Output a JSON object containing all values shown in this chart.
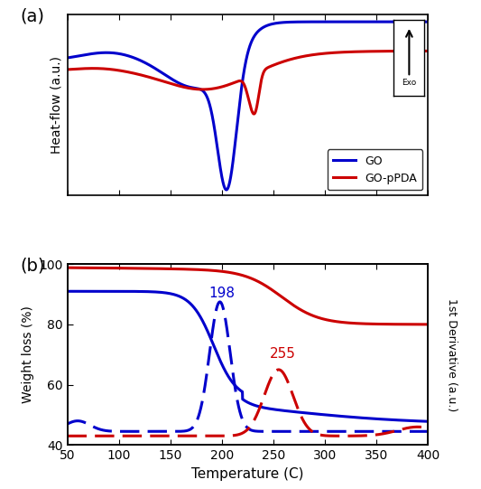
{
  "blue_color": "#0000cc",
  "red_color": "#cc0000",
  "background": "#ffffff",
  "panel_a_label": "(a)",
  "panel_b_label": "(b)",
  "xlabel": "Temperature (C)",
  "ylabel_a": "Heat-flow (a.u.)",
  "ylabel_b": "Weight loss (%)",
  "ylabel_b2": "1st Derivative (a.u.)",
  "legend_entries_go": "GO",
  "legend_entries_gopda": "GO-pPDA",
  "annotation_blue": "198",
  "annotation_red": "255",
  "xmin": 50,
  "xmax": 400,
  "ymin_b": 40,
  "ymax_b": 100,
  "yticks_b": [
    40,
    60,
    80,
    100
  ]
}
